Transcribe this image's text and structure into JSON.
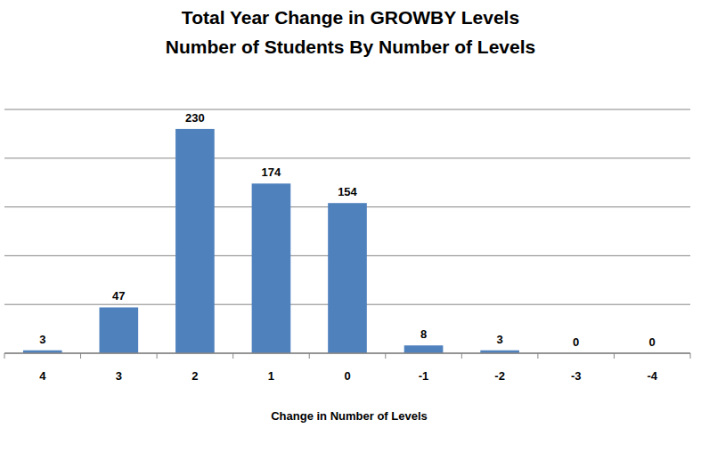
{
  "chart_data": {
    "type": "bar",
    "title": "Total Year Change in GROWBY Levels",
    "subtitle": "Number of Students By Number of Levels",
    "x_label": "Change in Number of Levels",
    "categories": [
      "4",
      "3",
      "2",
      "1",
      "0",
      "-1",
      "-2",
      "-3",
      "-4"
    ],
    "values": [
      3,
      47,
      230,
      174,
      154,
      8,
      3,
      0,
      0
    ],
    "color": "#4f81bd",
    "ylim": [
      0,
      250
    ],
    "yticks": [
      0,
      50,
      100,
      150,
      200,
      250
    ],
    "grid": true,
    "data_labels": true,
    "tick_labels": "x"
  }
}
